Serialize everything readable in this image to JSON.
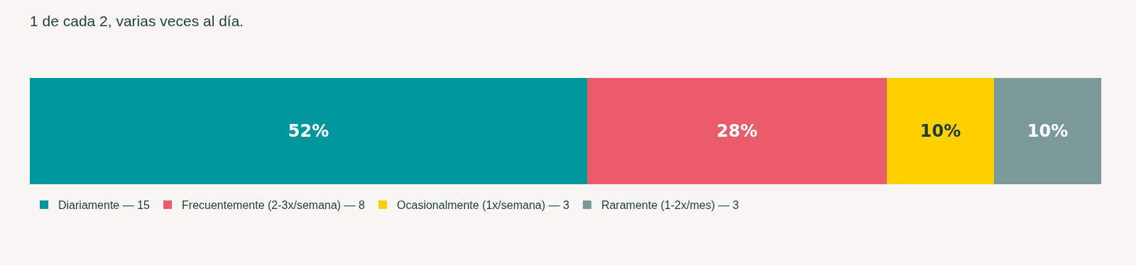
{
  "chart_data": {
    "type": "bar",
    "title": "1 de cada 2, varias veces al día.",
    "orientation": "horizontal",
    "stacked": true,
    "categories": [
      null
    ],
    "xlim": [
      0,
      100
    ],
    "tick_labels": false,
    "legend": "bottom left",
    "series": [
      {
        "name": "Diariamente — 15",
        "color": "#00979c",
        "values": [
          52
        ],
        "value_labels": [
          "52%"
        ]
      },
      {
        "name": "Frecuentemente (2-3x/semana) — 8",
        "color": "#eb5c6a",
        "values": [
          28
        ],
        "value_labels": [
          "28%"
        ]
      },
      {
        "name": "Ocasionalmente (1x/semana) — 3",
        "color": "#ffd000",
        "values": [
          10
        ],
        "value_labels": [
          "10%"
        ]
      },
      {
        "name": "Raramente (1-2x/mes) — 3",
        "color": "#7b9999",
        "values": [
          10
        ],
        "value_labels": [
          "10%"
        ]
      }
    ]
  }
}
